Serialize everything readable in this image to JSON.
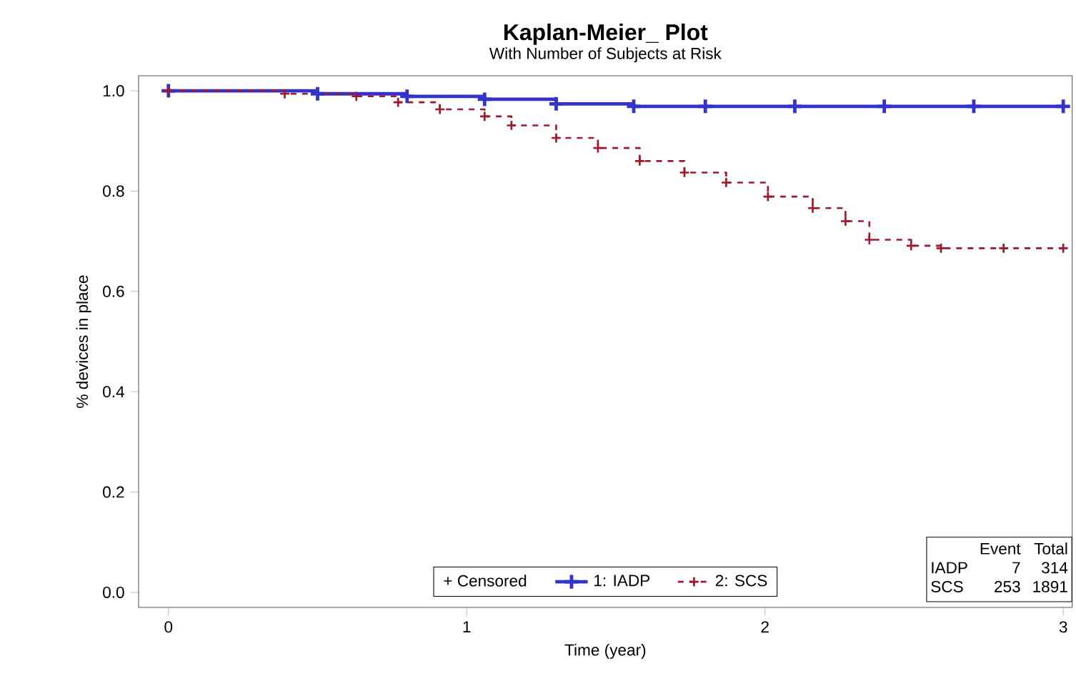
{
  "chart_data": {
    "type": "step",
    "title": "Kaplan-Meier_ Plot",
    "subtitle": "With Number of Subjects at Risk",
    "xlabel": "Time (year)",
    "ylabel": "% devices in place",
    "xlim": [
      -0.1,
      3.03
    ],
    "ylim": [
      -0.03,
      1.03
    ],
    "xticks": [
      0,
      1,
      2,
      3
    ],
    "yticks": [
      {
        "value": 0,
        "label": "0.0"
      },
      {
        "value": 0.2,
        "label": "0.2"
      },
      {
        "value": 0.4,
        "label": "0.4"
      },
      {
        "value": 0.6,
        "label": "0.6"
      },
      {
        "value": 0.8,
        "label": "0.8"
      },
      {
        "value": 1,
        "label": "1.0"
      }
    ],
    "marker": "cross",
    "legend": "bottom",
    "grid": false,
    "annotations": [
      "+ Censored",
      "Event",
      "Total",
      "IADP",
      "7",
      "314",
      "SCS",
      "253",
      "1891"
    ],
    "series": [
      {
        "name": "1: IADP",
        "color": "#3333cc",
        "line_style": "solid",
        "x": [
          0,
          0.5,
          0.8,
          1.06,
          1.3,
          1.56,
          1.8,
          2.1,
          2.4,
          2.7,
          3.0
        ],
        "values": [
          1.0,
          0.994,
          0.989,
          0.983,
          0.974,
          0.969,
          0.969,
          0.969,
          0.969,
          0.969,
          0.969
        ]
      },
      {
        "name": "2: SCS",
        "color": "#a0182c",
        "line_style": "dashed",
        "x": [
          0,
          0.39,
          0.63,
          0.77,
          0.91,
          1.06,
          1.15,
          1.3,
          1.44,
          1.58,
          1.73,
          1.87,
          2.01,
          2.16,
          2.27,
          2.35,
          2.49,
          2.59,
          2.8,
          3.0
        ],
        "values": [
          1.0,
          0.994,
          0.989,
          0.977,
          0.963,
          0.949,
          0.931,
          0.906,
          0.886,
          0.86,
          0.837,
          0.817,
          0.789,
          0.766,
          0.74,
          0.703,
          0.691,
          0.686,
          0.686,
          0.686
        ]
      }
    ]
  }
}
